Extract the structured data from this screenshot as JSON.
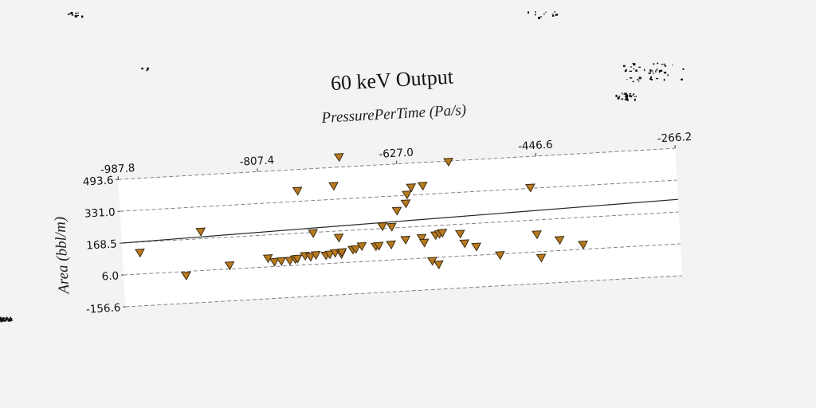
{
  "chart_data": {
    "type": "scatter",
    "title": "60 keV Output",
    "xlabel": "PressurePerTime (Pa/s)",
    "ylabel": "Area (bbl/m)",
    "x_ticks": [
      "-987.8",
      "-807.4",
      "-627.0",
      "-446.6",
      "-266.2"
    ],
    "y_ticks": [
      "-156.6",
      "6.0",
      "168.5",
      "331.0",
      "493.6"
    ],
    "xlim": [
      -987.8,
      -266.2
    ],
    "ylim": [
      -156.6,
      493.6
    ],
    "grid": "horizontal dashed",
    "marker": "triangle-down",
    "marker_color": "#b87a1e",
    "trend_line": {
      "x": [
        -987.8,
        -266.2
      ],
      "y": [
        168.5,
        233.0
      ]
    },
    "points": [
      {
        "x": -965,
        "y": 115
      },
      {
        "x": -907,
        "y": -15
      },
      {
        "x": -885,
        "y": 205
      },
      {
        "x": -850,
        "y": 25
      },
      {
        "x": -800,
        "y": 50
      },
      {
        "x": -792,
        "y": 30
      },
      {
        "x": -783,
        "y": 32
      },
      {
        "x": -772,
        "y": 32
      },
      {
        "x": -765,
        "y": 38
      },
      {
        "x": -762,
        "y": 40
      },
      {
        "x": -757,
        "y": 385
      },
      {
        "x": -752,
        "y": 52
      },
      {
        "x": -745,
        "y": 45
      },
      {
        "x": -740,
        "y": 165
      },
      {
        "x": -738,
        "y": 53
      },
      {
        "x": -725,
        "y": 48
      },
      {
        "x": -720,
        "y": 52
      },
      {
        "x": -713,
        "y": 58
      },
      {
        "x": -710,
        "y": 400
      },
      {
        "x": -707,
        "y": 135
      },
      {
        "x": -705,
        "y": 50
      },
      {
        "x": -704,
        "y": 60
      },
      {
        "x": -701,
        "y": 545
      },
      {
        "x": -690,
        "y": 70
      },
      {
        "x": -686,
        "y": 72
      },
      {
        "x": -678,
        "y": 85
      },
      {
        "x": -660,
        "y": 80
      },
      {
        "x": -656,
        "y": 82
      },
      {
        "x": -650,
        "y": 180
      },
      {
        "x": -640,
        "y": 85
      },
      {
        "x": -638,
        "y": 175
      },
      {
        "x": -630,
        "y": 255
      },
      {
        "x": -621,
        "y": 105
      },
      {
        "x": -618,
        "y": 290
      },
      {
        "x": -616,
        "y": 335
      },
      {
        "x": -610,
        "y": 370
      },
      {
        "x": -600,
        "y": 110
      },
      {
        "x": -597,
        "y": 85
      },
      {
        "x": -595,
        "y": 375
      },
      {
        "x": -588,
        "y": -10
      },
      {
        "x": -582,
        "y": 120
      },
      {
        "x": -580,
        "y": -30
      },
      {
        "x": -577,
        "y": 125
      },
      {
        "x": -573,
        "y": 130
      },
      {
        "x": -560,
        "y": 490
      },
      {
        "x": -550,
        "y": 120
      },
      {
        "x": -545,
        "y": 70
      },
      {
        "x": -530,
        "y": 50
      },
      {
        "x": -500,
        "y": 0
      },
      {
        "x": -456,
        "y": 335
      },
      {
        "x": -451,
        "y": 95
      },
      {
        "x": -447,
        "y": -25
      },
      {
        "x": -422,
        "y": 60
      },
      {
        "x": -392,
        "y": 30
      }
    ]
  }
}
